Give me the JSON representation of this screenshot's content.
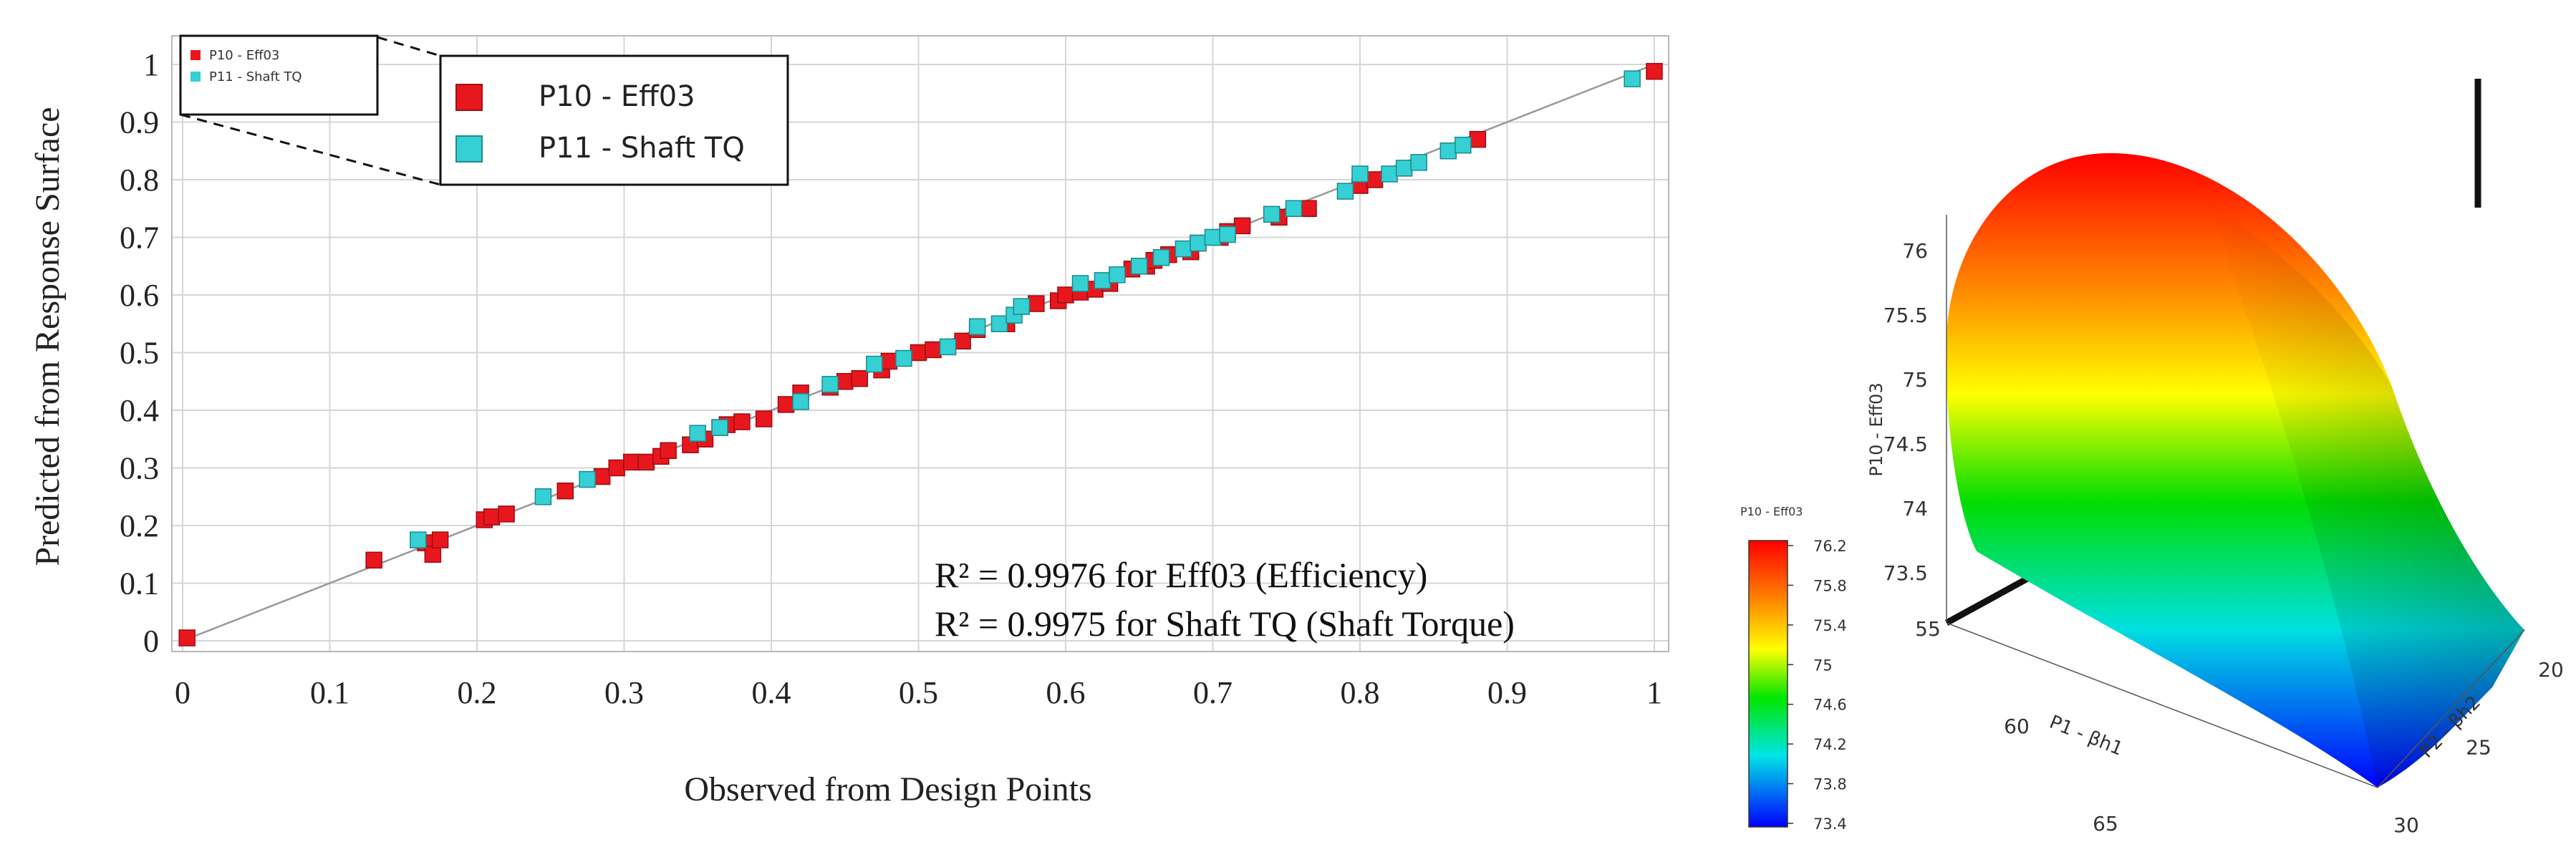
{
  "chart_data": [
    {
      "type": "scatter",
      "xlabel": "Observed from Design Points",
      "ylabel": "Predicted from Response Surface",
      "xlim": [
        0,
        1
      ],
      "ylim": [
        0,
        1
      ],
      "x_ticks": [
        "0",
        "0.1",
        "0.2",
        "0.3",
        "0.4",
        "0.5",
        "0.6",
        "0.7",
        "0.8",
        "0.9",
        "1"
      ],
      "y_ticks": [
        "0",
        "0.1",
        "0.2",
        "0.3",
        "0.4",
        "0.5",
        "0.6",
        "0.7",
        "0.8",
        "0.9",
        "1"
      ],
      "grid": true,
      "legend_position": "top-left",
      "reference_line": {
        "from": [
          0,
          0
        ],
        "to": [
          1,
          1
        ],
        "color": "#9a9a9a"
      },
      "legend_small": [
        "P10 - Eff03",
        "P11 - Shaft TQ"
      ],
      "annotations": [
        "R² = 0.9976 for Eff03 (Efficiency)",
        "R² = 0.9975 for Shaft TQ (Shaft Torque)"
      ],
      "series": [
        {
          "name": "P10 - Eff03",
          "color": "#e8171e",
          "points": [
            [
              0.003,
              0.005
            ],
            [
              0.13,
              0.14
            ],
            [
              0.165,
              0.17
            ],
            [
              0.17,
              0.15
            ],
            [
              0.175,
              0.175
            ],
            [
              0.205,
              0.21
            ],
            [
              0.21,
              0.215
            ],
            [
              0.22,
              0.22
            ],
            [
              0.26,
              0.26
            ],
            [
              0.285,
              0.285
            ],
            [
              0.295,
              0.3
            ],
            [
              0.305,
              0.31
            ],
            [
              0.315,
              0.31
            ],
            [
              0.325,
              0.32
            ],
            [
              0.33,
              0.33
            ],
            [
              0.345,
              0.34
            ],
            [
              0.355,
              0.35
            ],
            [
              0.365,
              0.37
            ],
            [
              0.37,
              0.375
            ],
            [
              0.38,
              0.38
            ],
            [
              0.395,
              0.385
            ],
            [
              0.41,
              0.41
            ],
            [
              0.42,
              0.43
            ],
            [
              0.44,
              0.44
            ],
            [
              0.45,
              0.45
            ],
            [
              0.46,
              0.455
            ],
            [
              0.475,
              0.47
            ],
            [
              0.48,
              0.485
            ],
            [
              0.5,
              0.5
            ],
            [
              0.51,
              0.505
            ],
            [
              0.53,
              0.52
            ],
            [
              0.54,
              0.54
            ],
            [
              0.56,
              0.55
            ],
            [
              0.58,
              0.585
            ],
            [
              0.595,
              0.59
            ],
            [
              0.6,
              0.6
            ],
            [
              0.61,
              0.605
            ],
            [
              0.62,
              0.61
            ],
            [
              0.63,
              0.62
            ],
            [
              0.645,
              0.645
            ],
            [
              0.655,
              0.65
            ],
            [
              0.66,
              0.66
            ],
            [
              0.67,
              0.67
            ],
            [
              0.685,
              0.675
            ],
            [
              0.69,
              0.69
            ],
            [
              0.705,
              0.7
            ],
            [
              0.71,
              0.71
            ],
            [
              0.72,
              0.72
            ],
            [
              0.745,
              0.735
            ],
            [
              0.765,
              0.75
            ],
            [
              0.8,
              0.79
            ],
            [
              0.81,
              0.8
            ],
            [
              0.88,
              0.87
            ],
            [
              1.0,
              0.988
            ]
          ]
        },
        {
          "name": "P11 - Shaft TQ",
          "color": "#35d0d4",
          "points": [
            [
              0.16,
              0.175
            ],
            [
              0.245,
              0.25
            ],
            [
              0.275,
              0.28
            ],
            [
              0.35,
              0.36
            ],
            [
              0.365,
              0.37
            ],
            [
              0.42,
              0.415
            ],
            [
              0.44,
              0.445
            ],
            [
              0.47,
              0.48
            ],
            [
              0.49,
              0.49
            ],
            [
              0.52,
              0.51
            ],
            [
              0.54,
              0.545
            ],
            [
              0.555,
              0.55
            ],
            [
              0.565,
              0.565
            ],
            [
              0.57,
              0.58
            ],
            [
              0.61,
              0.62
            ],
            [
              0.625,
              0.625
            ],
            [
              0.635,
              0.635
            ],
            [
              0.65,
              0.65
            ],
            [
              0.665,
              0.665
            ],
            [
              0.68,
              0.68
            ],
            [
              0.69,
              0.69
            ],
            [
              0.7,
              0.7
            ],
            [
              0.71,
              0.705
            ],
            [
              0.74,
              0.74
            ],
            [
              0.755,
              0.75
            ],
            [
              0.79,
              0.78
            ],
            [
              0.8,
              0.81
            ],
            [
              0.82,
              0.81
            ],
            [
              0.83,
              0.82
            ],
            [
              0.84,
              0.83
            ],
            [
              0.86,
              0.85
            ],
            [
              0.87,
              0.86
            ],
            [
              0.985,
              0.975
            ]
          ]
        }
      ]
    },
    {
      "type": "surface",
      "zlabel": "P10 - Eff03",
      "xlabel": "P1 - βh1",
      "ylabel": "P2 - βh2",
      "z_ticks": [
        "76",
        "75.5",
        "75",
        "74.5",
        "74",
        "73.5"
      ],
      "x_ticks": [
        "55",
        "60",
        "65"
      ],
      "y_ticks": [
        "20",
        "25",
        "30"
      ],
      "colorbar": {
        "title": "P10 - Eff03",
        "ticks": [
          "76.2",
          "75.8",
          "75.4",
          "75",
          "74.6",
          "74.2",
          "73.8",
          "73.4"
        ],
        "colors": [
          "#ff0000",
          "#ff8000",
          "#ffff00",
          "#00e600",
          "#00e5e5",
          "#0000ff"
        ]
      }
    }
  ]
}
